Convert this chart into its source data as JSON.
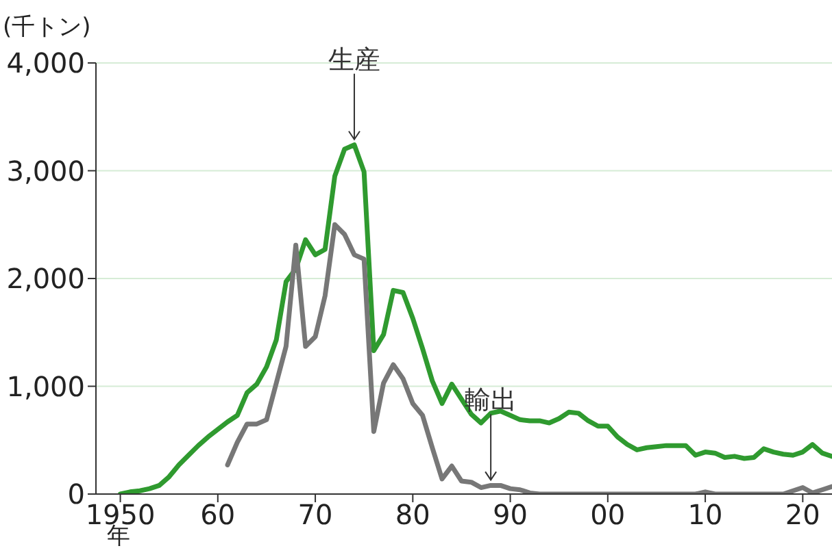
{
  "chart_data": {
    "type": "line",
    "ylabel": "(千トン)",
    "xlabel": "年",
    "xlim": [
      1947.5,
      2023
    ],
    "xticks": [
      {
        "value": 1950,
        "label": "1950"
      },
      {
        "value": 1960,
        "label": "60"
      },
      {
        "value": 1970,
        "label": "70"
      },
      {
        "value": 1980,
        "label": "80"
      },
      {
        "value": 1990,
        "label": "90"
      },
      {
        "value": 2000,
        "label": "00"
      },
      {
        "value": 2010,
        "label": "10"
      },
      {
        "value": 2020,
        "label": "20"
      }
    ],
    "ylim": [
      0,
      4000
    ],
    "yticks": [
      0,
      {
        "value": 1000,
        "label": "1,000"
      },
      {
        "value": 2000,
        "label": "2,000"
      },
      {
        "value": 3000,
        "label": "3,000"
      },
      {
        "value": 4000,
        "label": "4,000"
      }
    ],
    "grid": "y",
    "marker": "none",
    "line_style": "solid",
    "series": [
      {
        "color": "#2f9a2f",
        "x": [
          1950,
          1951,
          1952,
          1953,
          1954,
          1955,
          1956,
          1957,
          1958,
          1959,
          1960,
          1961,
          1962,
          1963,
          1964,
          1965,
          1966,
          1967,
          1968,
          1969,
          1970,
          1971,
          1972,
          1973,
          1974,
          1975,
          1976,
          1977,
          1978,
          1979,
          1980,
          1981,
          1982,
          1983,
          1984,
          1985,
          1986,
          1987,
          1988,
          1989,
          1990,
          1991,
          1992,
          1993,
          1994,
          1995,
          1996,
          1997,
          1998,
          1999,
          2000,
          2001,
          2002,
          2003,
          2004,
          2005,
          2006,
          2007,
          2008,
          2009,
          2010,
          2011,
          2012,
          2013,
          2014,
          2015,
          2016,
          2017,
          2018,
          2019,
          2020,
          2021,
          2022,
          2023
        ],
        "values": [
          0,
          20,
          30,
          50,
          80,
          160,
          270,
          360,
          450,
          530,
          600,
          670,
          730,
          940,
          1020,
          1180,
          1430,
          1970,
          2090,
          2360,
          2220,
          2270,
          2950,
          3200,
          3240,
          2990,
          1330,
          1480,
          1890,
          1870,
          1630,
          1350,
          1050,
          840,
          1020,
          880,
          740,
          660,
          750,
          770,
          730,
          690,
          680,
          680,
          660,
          700,
          760,
          750,
          680,
          630,
          630,
          530,
          460,
          410,
          430,
          440,
          450,
          450,
          450,
          360,
          390,
          380,
          340,
          350,
          330,
          340,
          420,
          390,
          370,
          360,
          390,
          460,
          380,
          350
        ]
      },
      {
        "color": "#777777",
        "x": [
          1961,
          1962,
          1963,
          1964,
          1965,
          1966,
          1967,
          1968,
          1969,
          1970,
          1971,
          1972,
          1973,
          1974,
          1975,
          1976,
          1977,
          1978,
          1979,
          1980,
          1981,
          1982,
          1983,
          1984,
          1985,
          1986,
          1987,
          1988,
          1989,
          1990,
          1991,
          1992,
          1993,
          1994,
          1995,
          1996,
          1997,
          1998,
          1999,
          2000,
          2001,
          2002,
          2003,
          2004,
          2005,
          2006,
          2007,
          2008,
          2009,
          2010,
          2011,
          2012,
          2013,
          2014,
          2015,
          2016,
          2017,
          2018,
          2019,
          2020,
          2021,
          2022,
          2023
        ],
        "values": [
          270,
          480,
          650,
          650,
          690,
          1030,
          1370,
          2310,
          1370,
          1460,
          1840,
          2500,
          2410,
          2220,
          2180,
          580,
          1030,
          1200,
          1070,
          840,
          730,
          430,
          140,
          260,
          120,
          110,
          60,
          80,
          80,
          50,
          40,
          10,
          0,
          0,
          0,
          0,
          0,
          0,
          0,
          0,
          0,
          0,
          0,
          0,
          0,
          0,
          0,
          0,
          0,
          20,
          0,
          0,
          0,
          0,
          0,
          0,
          0,
          0,
          30,
          60,
          10,
          40,
          70
        ]
      }
    ],
    "annotations": [
      {
        "text": "生産",
        "x": 1974,
        "y": 3240
      },
      {
        "text": "輸出",
        "x": 1988,
        "y": 80
      }
    ]
  }
}
